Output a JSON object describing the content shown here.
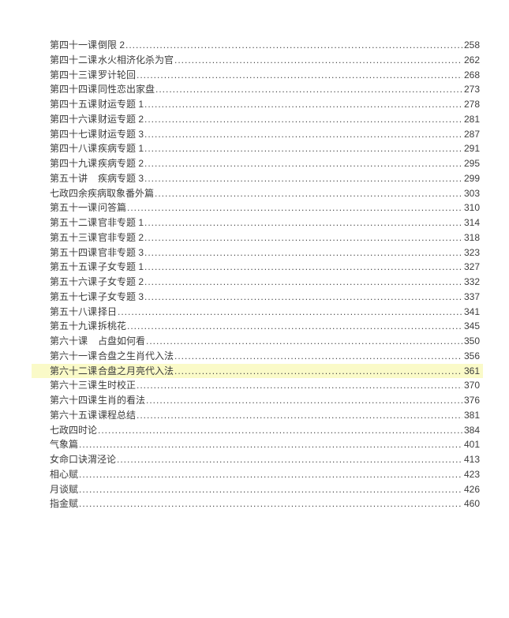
{
  "document": {
    "type": "table-of-contents",
    "text_color": "#3c3c3c",
    "highlight_color": "#fafac8",
    "toc": [
      {
        "chapter": "第四十一课",
        "title": "倒限 2",
        "page": "258",
        "highlighted": false
      },
      {
        "chapter": "第四十二课",
        "title": "水火相济化杀为官",
        "page": "262",
        "highlighted": false
      },
      {
        "chapter": "第四十三课",
        "title": "罗计轮回",
        "page": "268",
        "highlighted": false
      },
      {
        "chapter": "第四十四课",
        "title": "同性恋出家盘",
        "page": "273",
        "highlighted": false
      },
      {
        "chapter": "第四十五课",
        "title": "财运专题 1",
        "page": "278",
        "highlighted": false
      },
      {
        "chapter": "第四十六课",
        "title": "财运专题 2",
        "page": "281",
        "highlighted": false
      },
      {
        "chapter": "第四十七课",
        "title": "财运专题 3",
        "page": "287",
        "highlighted": false
      },
      {
        "chapter": "第四十八课",
        "title": "疾病专题 1",
        "page": "291",
        "highlighted": false
      },
      {
        "chapter": "第四十九课",
        "title": "疾病专题 2",
        "page": "295",
        "highlighted": false
      },
      {
        "chapter": "第五十讲",
        "title": "疾病专题 3",
        "page": "299",
        "highlighted": false
      },
      {
        "chapter": "",
        "title": "七政四余疾病取象番外篇",
        "page": "303",
        "highlighted": false
      },
      {
        "chapter": "第五十一课",
        "title": "问答篇",
        "page": "310",
        "highlighted": false
      },
      {
        "chapter": "第五十二课",
        "title": "官非专题 1",
        "page": "314",
        "highlighted": false
      },
      {
        "chapter": "第五十三课",
        "title": "官非专题 2",
        "page": "318",
        "highlighted": false
      },
      {
        "chapter": "第五十四课",
        "title": "官非专题 3",
        "page": "323",
        "highlighted": false
      },
      {
        "chapter": "第五十五课",
        "title": "子女专题 1",
        "page": "327",
        "highlighted": false
      },
      {
        "chapter": "第五十六课",
        "title": "子女专题 2",
        "page": "332",
        "highlighted": false
      },
      {
        "chapter": "第五十七课",
        "title": "子女专题 3",
        "page": "337",
        "highlighted": false
      },
      {
        "chapter": "第五十八课",
        "title": "择日",
        "page": "341",
        "highlighted": false
      },
      {
        "chapter": "第五十九课",
        "title": "拆桃花",
        "page": "345",
        "highlighted": false
      },
      {
        "chapter": "第六十课",
        "title": "占盘如何看",
        "page": "350",
        "highlighted": false
      },
      {
        "chapter": "第六十一课",
        "title": "合盘之生肖代入法",
        "page": "356",
        "highlighted": false
      },
      {
        "chapter": "第六十二课",
        "title": "合盘之月亮代入法",
        "page": "361",
        "highlighted": true
      },
      {
        "chapter": "第六十三课",
        "title": "生时校正",
        "page": "370",
        "highlighted": false
      },
      {
        "chapter": "第六十四课",
        "title": "生肖的看法",
        "page": "376",
        "highlighted": false
      },
      {
        "chapter": "第六十五课",
        "title": "课程总结",
        "page": "381",
        "highlighted": false
      },
      {
        "chapter": "",
        "title": "七政四时论",
        "page": "384",
        "highlighted": false
      },
      {
        "chapter": "",
        "title": "气象篇",
        "page": "401",
        "highlighted": false
      },
      {
        "chapter": "",
        "title": "女命口诀渭泾论",
        "page": "413",
        "highlighted": false
      },
      {
        "chapter": "",
        "title": "相心赋",
        "page": "423",
        "highlighted": false
      },
      {
        "chapter": "",
        "title": "月谈赋",
        "page": "426",
        "highlighted": false
      },
      {
        "chapter": "",
        "title": "指金赋",
        "page": "460",
        "highlighted": false
      }
    ]
  }
}
